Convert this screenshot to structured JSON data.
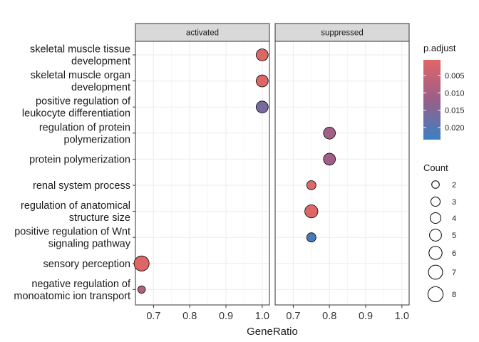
{
  "chart_data": {
    "type": "scatter",
    "xlabel": "GeneRatio",
    "xlim": [
      0.65,
      1.02
    ],
    "x_ticks": [
      "0.7",
      "0.8",
      "0.9",
      "1.0"
    ],
    "panels": [
      "activated",
      "suppressed"
    ],
    "categories": [
      [
        "skeletal muscle tissue",
        "development"
      ],
      [
        "skeletal muscle organ",
        "development"
      ],
      [
        "positive regulation of",
        "leukocyte differentiation"
      ],
      [
        "regulation of protein",
        "polymerization"
      ],
      [
        "protein polymerization"
      ],
      [
        "renal system process"
      ],
      [
        "regulation of anatomical",
        "structure size"
      ],
      [
        "positive regulation of Wnt",
        "signaling pathway"
      ],
      [
        "sensory perception"
      ],
      [
        "negative regulation of",
        "monoatomic ion transport"
      ]
    ],
    "points": [
      {
        "panel": 0,
        "cat": 0,
        "x": 1.0,
        "count": 5,
        "p_adjust": 0.001
      },
      {
        "panel": 0,
        "cat": 1,
        "x": 1.0,
        "count": 5,
        "p_adjust": 0.001
      },
      {
        "panel": 0,
        "cat": 2,
        "x": 1.0,
        "count": 5,
        "p_adjust": 0.016
      },
      {
        "panel": 1,
        "cat": 3,
        "x": 0.8,
        "count": 5,
        "p_adjust": 0.011
      },
      {
        "panel": 1,
        "cat": 4,
        "x": 0.8,
        "count": 5,
        "p_adjust": 0.011
      },
      {
        "panel": 1,
        "cat": 5,
        "x": 0.75,
        "count": 3,
        "p_adjust": 0.001
      },
      {
        "panel": 1,
        "cat": 6,
        "x": 0.75,
        "count": 6,
        "p_adjust": 0.001
      },
      {
        "panel": 1,
        "cat": 7,
        "x": 0.75,
        "count": 3,
        "p_adjust": 0.022
      },
      {
        "panel": 0,
        "cat": 8,
        "x": 0.667,
        "count": 8,
        "p_adjust": 0.001
      },
      {
        "panel": 0,
        "cat": 9,
        "x": 0.667,
        "count": 2,
        "p_adjust": 0.008
      }
    ],
    "color_legend": {
      "title": "p.adjust",
      "ticks": [
        "0.005",
        "0.010",
        "0.015",
        "0.020"
      ],
      "tick_values": [
        0.005,
        0.01,
        0.015,
        0.02
      ],
      "range": [
        0.0005,
        0.0235
      ],
      "low_color": "#e06666",
      "mid_color": "#9a5f88",
      "high_color": "#3a80c4"
    },
    "size_legend": {
      "title": "Count",
      "values": [
        2,
        3,
        4,
        5,
        6,
        7,
        8
      ],
      "labels": [
        "2",
        "3",
        "4",
        "5",
        "6",
        "7",
        "8"
      ]
    },
    "grid": true,
    "strip_fill": "#d9d9d9"
  }
}
